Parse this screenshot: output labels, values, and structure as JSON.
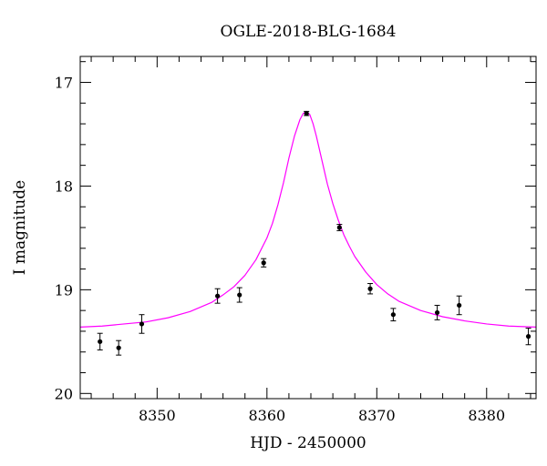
{
  "chart_data": {
    "type": "scatter",
    "title": "OGLE-2018-BLG-1684",
    "xlabel": "HJD - 2450000",
    "ylabel": "I magnitude",
    "xlim": [
      8343,
      8384.5
    ],
    "ylim": [
      20.05,
      16.75
    ],
    "y_inverted": true,
    "grid": false,
    "x_ticks": [
      8350,
      8360,
      8370,
      8380
    ],
    "x_tick_labels": [
      "8350",
      "8360",
      "8370",
      "8380"
    ],
    "y_ticks": [
      17,
      18,
      19,
      20
    ],
    "y_tick_labels": [
      "17",
      "18",
      "19",
      "20"
    ],
    "series": [
      {
        "kind": "points",
        "color": "#000000",
        "x": [
          8344.8,
          8346.5,
          8348.6,
          8355.5,
          8357.5,
          8359.7,
          8363.6,
          8366.6,
          8369.4,
          8371.5,
          8375.5,
          8377.5,
          8383.8
        ],
        "y": [
          19.5,
          19.56,
          19.33,
          19.06,
          19.05,
          18.74,
          17.3,
          18.4,
          18.99,
          19.24,
          19.22,
          19.15,
          19.45
        ],
        "err": [
          0.08,
          0.07,
          0.09,
          0.07,
          0.07,
          0.04,
          0.02,
          0.03,
          0.05,
          0.06,
          0.07,
          0.09,
          0.08
        ]
      },
      {
        "kind": "model",
        "color": "#ff00ff",
        "x": [
          8343.0,
          8345.0,
          8347.0,
          8349.0,
          8351.0,
          8353.0,
          8355.0,
          8356.0,
          8357.0,
          8358.0,
          8359.0,
          8360.0,
          8360.5,
          8361.0,
          8361.5,
          8362.0,
          8362.5,
          8363.0,
          8363.3,
          8363.6,
          8363.9,
          8364.2,
          8364.5,
          8365.0,
          8365.5,
          8366.0,
          8366.5,
          8367.0,
          8367.5,
          8368.0,
          8369.0,
          8370.0,
          8371.0,
          8372.0,
          8374.0,
          8376.0,
          8378.0,
          8380.0,
          8382.0,
          8384.5
        ],
        "y": [
          19.36,
          19.35,
          19.33,
          19.31,
          19.27,
          19.21,
          19.12,
          19.05,
          18.97,
          18.86,
          18.71,
          18.5,
          18.36,
          18.18,
          17.97,
          17.73,
          17.52,
          17.36,
          17.3,
          17.28,
          17.31,
          17.4,
          17.52,
          17.75,
          17.98,
          18.17,
          18.33,
          18.47,
          18.58,
          18.68,
          18.83,
          18.95,
          19.04,
          19.11,
          19.2,
          19.26,
          19.3,
          19.33,
          19.35,
          19.36
        ]
      }
    ]
  }
}
